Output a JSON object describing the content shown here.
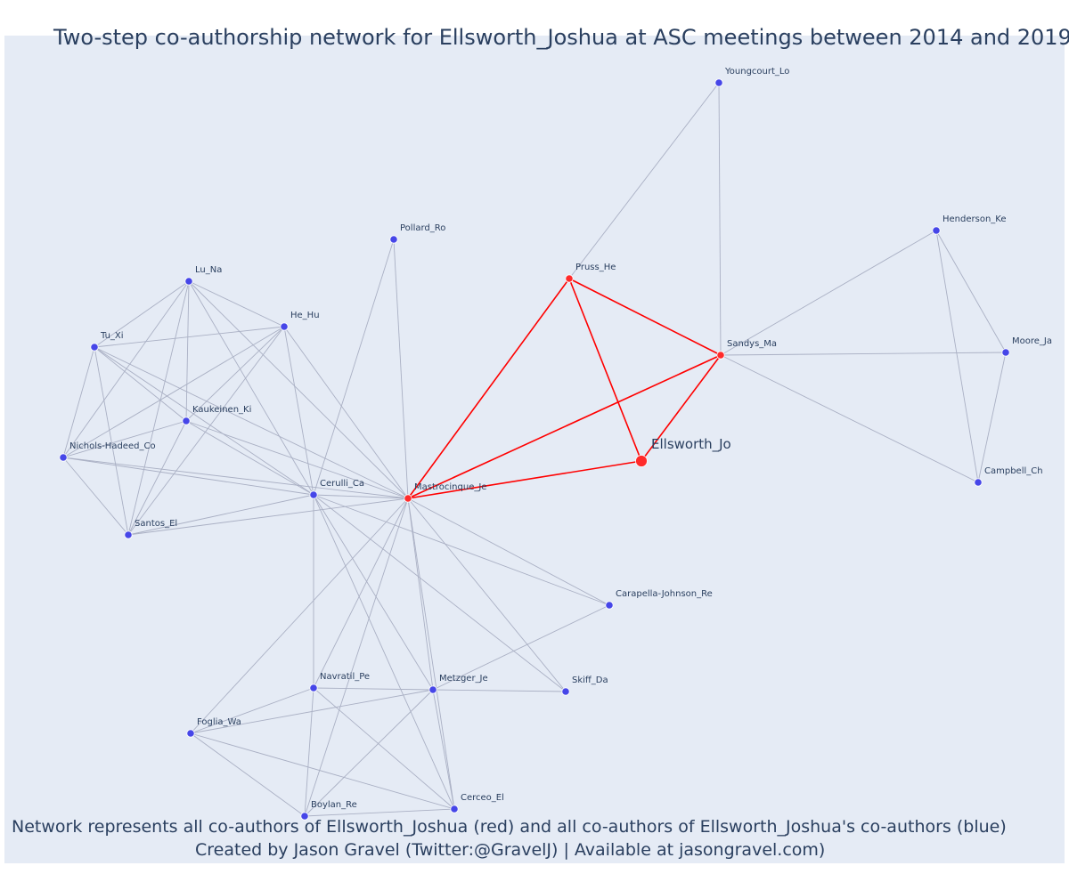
{
  "chart_data": {
    "type": "network",
    "title": "Two-step co-authorship network for Ellsworth_Joshua at ASC meetings between 2014 and 2019",
    "annotation_lines": [
      "Network represents all co-authors of Ellsworth_Joshua (red) and all co-authors of Ellsworth_Joshua's co-authors (blue)",
      "Created by Jason Gravel (Twitter:@GravelJ) | Available at jasongravel.com)"
    ],
    "colors": {
      "background": "#e5ebf5",
      "direct_coauthor": "#ff2a2a",
      "second_step": "#4646e8",
      "direct_edge": "#ff0000",
      "other_edge": "#aab0c4"
    },
    "nodes": [
      {
        "id": "Ellsworth_Jo",
        "group": "focal"
      },
      {
        "id": "Pruss_He",
        "group": "direct"
      },
      {
        "id": "Sandys_Ma",
        "group": "direct"
      },
      {
        "id": "Mastrocinque_Je",
        "group": "direct"
      },
      {
        "id": "Youngcourt_Lo",
        "group": "second"
      },
      {
        "id": "Henderson_Ke",
        "group": "second"
      },
      {
        "id": "Moore_Ja",
        "group": "second"
      },
      {
        "id": "Campbell_Ch",
        "group": "second"
      },
      {
        "id": "Pollard_Ro",
        "group": "second"
      },
      {
        "id": "Lu_Na",
        "group": "second"
      },
      {
        "id": "He_Hu",
        "group": "second"
      },
      {
        "id": "Tu_Xi",
        "group": "second"
      },
      {
        "id": "Kaukeinen_Ki",
        "group": "second"
      },
      {
        "id": "Nichols-Hadeed_Co",
        "group": "second"
      },
      {
        "id": "Cerulli_Ca",
        "group": "second"
      },
      {
        "id": "Santos_El",
        "group": "second"
      },
      {
        "id": "Carapella-Johnson_Re",
        "group": "second"
      },
      {
        "id": "Navratil_Pe",
        "group": "second"
      },
      {
        "id": "Metzger_Je",
        "group": "second"
      },
      {
        "id": "Skiff_Da",
        "group": "second"
      },
      {
        "id": "Foglia_Wa",
        "group": "second"
      },
      {
        "id": "Cerceo_El",
        "group": "second"
      },
      {
        "id": "Boylan_Re",
        "group": "second"
      }
    ],
    "direct_edges": [
      [
        "Ellsworth_Jo",
        "Pruss_He"
      ],
      [
        "Ellsworth_Jo",
        "Sandys_Ma"
      ],
      [
        "Ellsworth_Jo",
        "Mastrocinque_Je"
      ],
      [
        "Pruss_He",
        "Sandys_Ma"
      ],
      [
        "Pruss_He",
        "Mastrocinque_Je"
      ],
      [
        "Sandys_Ma",
        "Mastrocinque_Je"
      ]
    ],
    "other_edges": [
      [
        "Pruss_He",
        "Youngcourt_Lo"
      ],
      [
        "Sandys_Ma",
        "Youngcourt_Lo"
      ],
      [
        "Sandys_Ma",
        "Henderson_Ke"
      ],
      [
        "Sandys_Ma",
        "Moore_Ja"
      ],
      [
        "Sandys_Ma",
        "Campbell_Ch"
      ],
      [
        "Henderson_Ke",
        "Moore_Ja"
      ],
      [
        "Henderson_Ke",
        "Campbell_Ch"
      ],
      [
        "Moore_Ja",
        "Campbell_Ch"
      ],
      [
        "Mastrocinque_Je",
        "Pollard_Ro"
      ],
      [
        "Mastrocinque_Je",
        "Lu_Na"
      ],
      [
        "Mastrocinque_Je",
        "He_Hu"
      ],
      [
        "Mastrocinque_Je",
        "Tu_Xi"
      ],
      [
        "Mastrocinque_Je",
        "Kaukeinen_Ki"
      ],
      [
        "Mastrocinque_Je",
        "Nichols-Hadeed_Co"
      ],
      [
        "Mastrocinque_Je",
        "Cerulli_Ca"
      ],
      [
        "Mastrocinque_Je",
        "Santos_El"
      ],
      [
        "Mastrocinque_Je",
        "Carapella-Johnson_Re"
      ],
      [
        "Mastrocinque_Je",
        "Navratil_Pe"
      ],
      [
        "Mastrocinque_Je",
        "Metzger_Je"
      ],
      [
        "Mastrocinque_Je",
        "Skiff_Da"
      ],
      [
        "Mastrocinque_Je",
        "Foglia_Wa"
      ],
      [
        "Mastrocinque_Je",
        "Cerceo_El"
      ],
      [
        "Mastrocinque_Je",
        "Boylan_Re"
      ],
      [
        "Pollard_Ro",
        "Cerulli_Ca"
      ],
      [
        "Lu_Na",
        "He_Hu"
      ],
      [
        "Lu_Na",
        "Tu_Xi"
      ],
      [
        "Lu_Na",
        "Kaukeinen_Ki"
      ],
      [
        "Lu_Na",
        "Nichols-Hadeed_Co"
      ],
      [
        "Lu_Na",
        "Cerulli_Ca"
      ],
      [
        "Lu_Na",
        "Santos_El"
      ],
      [
        "He_Hu",
        "Tu_Xi"
      ],
      [
        "He_Hu",
        "Kaukeinen_Ki"
      ],
      [
        "He_Hu",
        "Nichols-Hadeed_Co"
      ],
      [
        "He_Hu",
        "Cerulli_Ca"
      ],
      [
        "He_Hu",
        "Santos_El"
      ],
      [
        "Tu_Xi",
        "Kaukeinen_Ki"
      ],
      [
        "Tu_Xi",
        "Nichols-Hadeed_Co"
      ],
      [
        "Tu_Xi",
        "Cerulli_Ca"
      ],
      [
        "Tu_Xi",
        "Santos_El"
      ],
      [
        "Kaukeinen_Ki",
        "Nichols-Hadeed_Co"
      ],
      [
        "Kaukeinen_Ki",
        "Cerulli_Ca"
      ],
      [
        "Kaukeinen_Ki",
        "Santos_El"
      ],
      [
        "Nichols-Hadeed_Co",
        "Cerulli_Ca"
      ],
      [
        "Nichols-Hadeed_Co",
        "Santos_El"
      ],
      [
        "Cerulli_Ca",
        "Santos_El"
      ],
      [
        "Cerulli_Ca",
        "Carapella-Johnson_Re"
      ],
      [
        "Cerulli_Ca",
        "Navratil_Pe"
      ],
      [
        "Cerulli_Ca",
        "Metzger_Je"
      ],
      [
        "Cerulli_Ca",
        "Skiff_Da"
      ],
      [
        "Cerulli_Ca",
        "Cerceo_El"
      ],
      [
        "Carapella-Johnson_Re",
        "Metzger_Je"
      ],
      [
        "Navratil_Pe",
        "Metzger_Je"
      ],
      [
        "Navratil_Pe",
        "Foglia_Wa"
      ],
      [
        "Navratil_Pe",
        "Boylan_Re"
      ],
      [
        "Navratil_Pe",
        "Cerceo_El"
      ],
      [
        "Metzger_Je",
        "Skiff_Da"
      ],
      [
        "Metzger_Je",
        "Foglia_Wa"
      ],
      [
        "Metzger_Je",
        "Boylan_Re"
      ],
      [
        "Metzger_Je",
        "Cerceo_El"
      ],
      [
        "Foglia_Wa",
        "Boylan_Re"
      ],
      [
        "Foglia_Wa",
        "Cerceo_El"
      ],
      [
        "Boylan_Re",
        "Cerceo_El"
      ]
    ]
  }
}
